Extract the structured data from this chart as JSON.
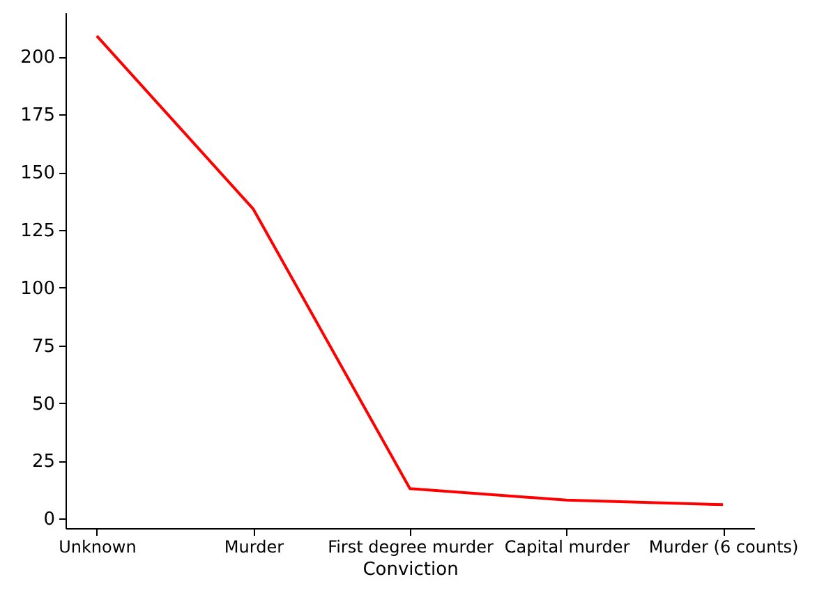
{
  "chart_data": {
    "type": "line",
    "xlabel": "Conviction",
    "categories": [
      "Unknown",
      "Murder",
      "First degree murder",
      "Capital murder",
      "Murder (6 counts)"
    ],
    "ylim": [
      -4.15,
      219.15
    ],
    "yticks": [
      0,
      25,
      50,
      75,
      100,
      125,
      150,
      175,
      200
    ],
    "series": [
      {
        "color": "#ff0000",
        "values": [
          209,
          134,
          13,
          8,
          6
        ]
      }
    ]
  }
}
